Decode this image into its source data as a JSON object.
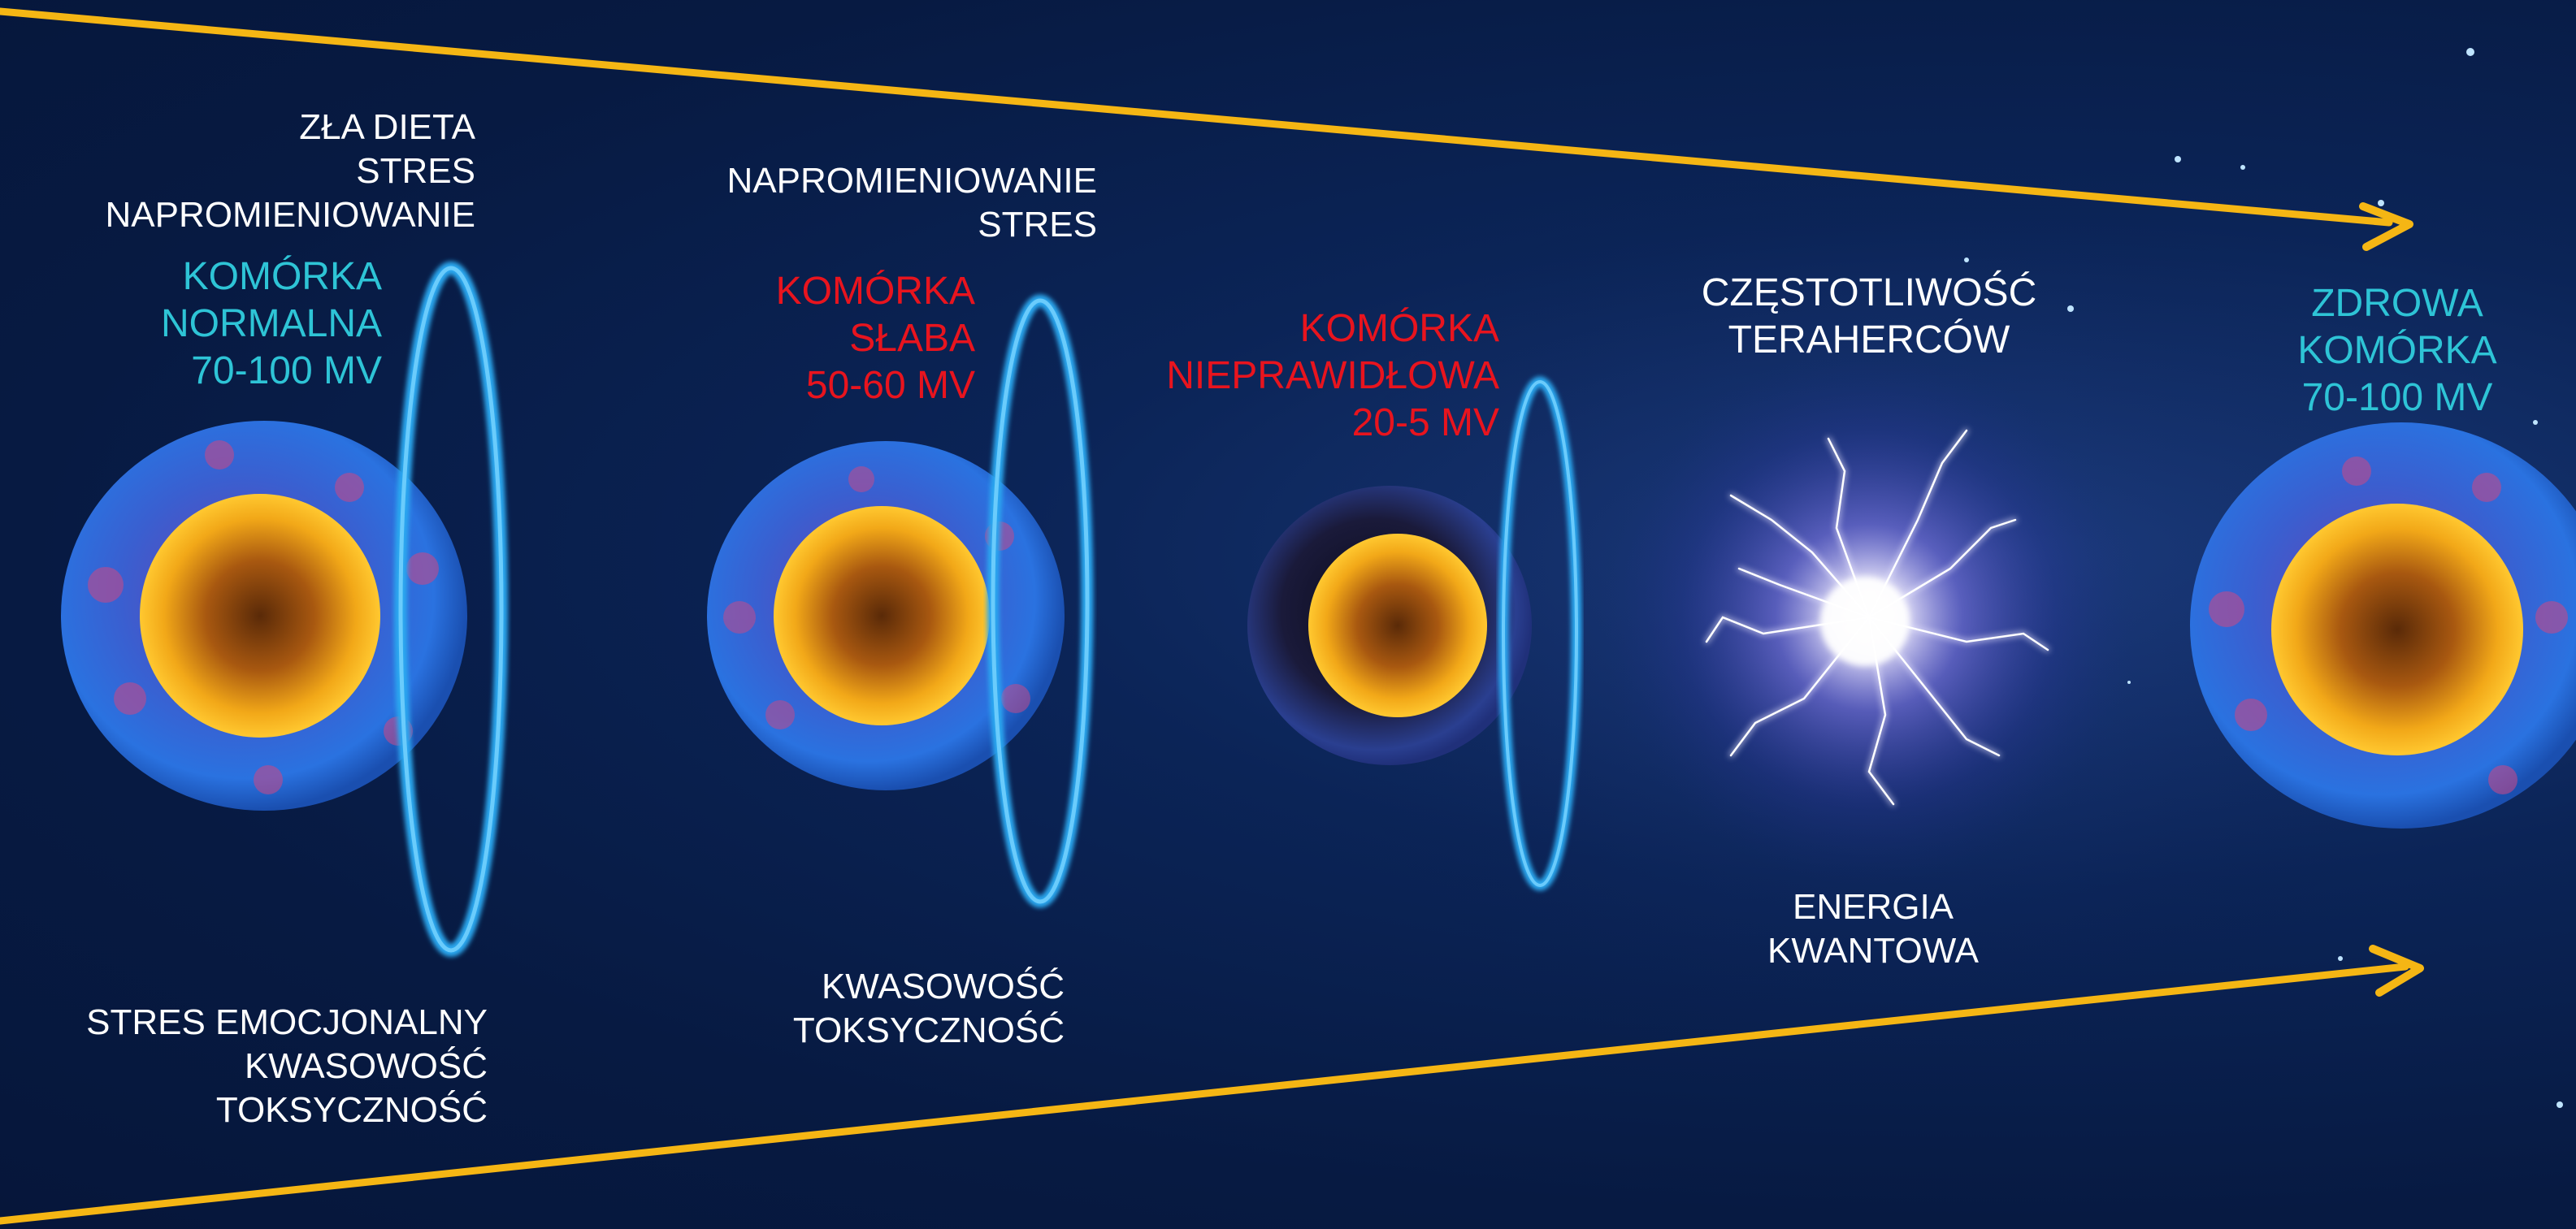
{
  "colors": {
    "background": "#071a42",
    "arrow": "#f5b614",
    "white_text": "#ffffff",
    "healthy_text": "#2ec4d6",
    "unhealthy_text": "#e8141e",
    "nucleus": "#f2a818",
    "membrane": "#2a6bd8",
    "ring": "#29a8f0"
  },
  "stages": [
    {
      "top_lines": [
        "ZŁA DIETA",
        "STRES",
        "NAPROMIENIOWANIE"
      ],
      "cell_lines": [
        "KOMÓRKA",
        "NORMALNA",
        "70-100 MV"
      ],
      "bottom_lines": [
        "STRES EMOCJONALNY",
        "KWASOWOŚĆ",
        "TOKSYCZNOŚĆ"
      ]
    },
    {
      "top_lines": [
        "NAPROMIENIOWANIE",
        "STRES"
      ],
      "cell_lines": [
        "KOMÓRKA",
        "SŁABA",
        "50-60 MV"
      ],
      "bottom_lines": [
        "KWASOWOŚĆ",
        "TOKSYCZNOŚĆ"
      ]
    },
    {
      "cell_lines": [
        "KOMÓRKA",
        "NIEPRAWIDŁOWA",
        "20-5 MV"
      ]
    },
    {
      "top_lines": [
        "CZĘSTOTLIWOŚĆ",
        "TERAHERCÓW"
      ],
      "bottom_lines": [
        "ENERGIA",
        "KWANTOWA"
      ]
    },
    {
      "cell_lines": [
        "ZDROWA",
        "KOMÓRKA",
        "70-100 MV"
      ]
    }
  ]
}
